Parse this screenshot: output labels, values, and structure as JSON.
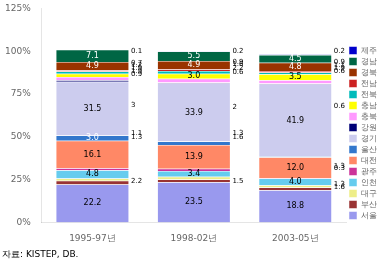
{
  "chart_data": {
    "type": "bar",
    "stacked": true,
    "subtitle": "자료: KISTEP, DB.",
    "categories": [
      "1995-97년",
      "1998-02년",
      "2003-05년"
    ],
    "series": [
      {
        "name": "서울",
        "color": "#9999ee",
        "values": [
          22.2,
          23.5,
          18.8
        ],
        "value_labels": [
          "22.2",
          "23.5",
          "18.8"
        ]
      },
      {
        "name": "부산",
        "color": "#993333",
        "values": [
          2.2,
          1.5,
          1.6
        ],
        "value_labels": [
          null,
          null,
          null
        ]
      },
      {
        "name": "대구",
        "color": "#eeee88",
        "values": [
          1.3,
          1.6,
          1.3
        ],
        "value_labels": [
          null,
          null,
          null
        ]
      },
      {
        "name": "인천",
        "color": "#66ccee",
        "values": [
          4.8,
          3.4,
          4.0
        ],
        "value_labels": [
          "4.8",
          "3.4",
          "4.0"
        ]
      },
      {
        "name": "광주",
        "color": "#cc3399",
        "values": [
          1.1,
          1.3,
          0.3
        ],
        "value_labels": [
          null,
          null,
          null
        ]
      },
      {
        "name": "대전",
        "color": "#ff8866",
        "values": [
          16.1,
          13.9,
          12.0
        ],
        "value_labels": [
          "16.1",
          "13.9",
          "12.0"
        ]
      },
      {
        "name": "울산",
        "color": "#3377cc",
        "values": [
          3.0,
          2.0,
          0.6
        ],
        "value_labels": [
          "3.0",
          null,
          null
        ]
      },
      {
        "name": "경기",
        "color": "#ccccee",
        "values": [
          31.5,
          33.9,
          41.9
        ],
        "value_labels": [
          "31.5",
          "33.9",
          "41.9"
        ]
      },
      {
        "name": "강원",
        "color": "#000077",
        "values": [
          0.9,
          0.6,
          0.6
        ],
        "value_labels": [
          null,
          null,
          null
        ]
      },
      {
        "name": "충북",
        "color": "#ff99ff",
        "values": [
          1.9,
          2.2,
          1.9
        ],
        "value_labels": [
          null,
          null,
          null
        ]
      },
      {
        "name": "충남",
        "color": "#ffff00",
        "values": [
          1.9,
          3.0,
          3.5
        ],
        "value_labels": [
          null,
          "3.0",
          "3.5"
        ]
      },
      {
        "name": "전북",
        "color": "#00bbbb",
        "values": [
          1.2,
          1.6,
          1.1
        ],
        "value_labels": [
          null,
          null,
          null
        ]
      },
      {
        "name": "전남",
        "color": "#cc2222",
        "values": [
          0.7,
          0.9,
          0.9
        ],
        "value_labels": [
          null,
          null,
          null
        ]
      },
      {
        "name": "경북",
        "color": "#993300",
        "values": [
          4.9,
          4.9,
          4.8
        ],
        "value_labels": [
          "4.9",
          "4.9",
          "4.8"
        ]
      },
      {
        "name": "경남",
        "color": "#006644",
        "values": [
          7.1,
          5.5,
          4.5
        ],
        "value_labels": [
          "7.1",
          "5.5",
          "4.5"
        ]
      },
      {
        "name": "제주",
        "color": "#0000cc",
        "values": [
          0.1,
          0.2,
          0.2
        ],
        "value_labels": [
          null,
          null,
          null
        ]
      }
    ],
    "ylim": [
      0,
      125
    ],
    "yticks": [
      {
        "value": 0,
        "label": "0%"
      },
      {
        "value": 25,
        "label": "25%"
      },
      {
        "value": 50,
        "label": "50%"
      },
      {
        "value": 75,
        "label": "75%"
      },
      {
        "value": 100,
        "label": "100%"
      },
      {
        "value": 125,
        "label": "125%"
      }
    ],
    "grid": false,
    "legend": "right",
    "data_labels": true,
    "annotations": [
      {
        "x": "1995-97년",
        "y": 99.95,
        "text": "0.1"
      },
      {
        "x": "1995-97년",
        "y": 93.15,
        "text": "0.7"
      },
      {
        "x": "1995-97년",
        "y": 91.8,
        "text": "1.2"
      },
      {
        "x": "1995-97년",
        "y": 90.3,
        "text": "1.9"
      },
      {
        "x": "1995-97년",
        "y": 88.4,
        "text": "1.9"
      },
      {
        "x": "1995-97년",
        "y": 86.55,
        "text": "0.9"
      },
      {
        "x": "1995-97년",
        "y": 68.25,
        "text": "3"
      },
      {
        "x": "1995-97년",
        "y": 51.9,
        "text": "1.1"
      },
      {
        "x": "1995-97년",
        "y": 49.5,
        "text": "1.3"
      },
      {
        "x": "1995-97년",
        "y": 24.2,
        "text": "2.2"
      },
      {
        "x": "1998-02년",
        "y": 99.9,
        "text": "0.2"
      },
      {
        "x": "1998-02년",
        "y": 93.55,
        "text": "0.9"
      },
      {
        "x": "1998-02년",
        "y": 92.3,
        "text": "1.6"
      },
      {
        "x": "1998-02년",
        "y": 90.1,
        "text": "2.2"
      },
      {
        "x": "1998-02년",
        "y": 87.8,
        "text": "0.6"
      },
      {
        "x": "1998-02년",
        "y": 67.55,
        "text": "2"
      },
      {
        "x": "1998-02년",
        "y": 52.1,
        "text": "1.3"
      },
      {
        "x": "1998-02년",
        "y": 49.8,
        "text": "1.6"
      },
      {
        "x": "1998-02년",
        "y": 24.25,
        "text": "1.5"
      },
      {
        "x": "2003-05년",
        "y": 99.9,
        "text": "0.2"
      },
      {
        "x": "2003-05년",
        "y": 93.55,
        "text": "0.9"
      },
      {
        "x": "2003-05년",
        "y": 92.1,
        "text": "1.1"
      },
      {
        "x": "2003-05년",
        "y": 90.3,
        "text": "1.9"
      },
      {
        "x": "2003-05년",
        "y": 88.1,
        "text": "0.6"
      },
      {
        "x": "2003-05년",
        "y": 68.0,
        "text": "0.6"
      },
      {
        "x": "2003-05년",
        "y": 33.1,
        "text": "1.3"
      },
      {
        "x": "2003-05년",
        "y": 31.65,
        "text": "0.3"
      },
      {
        "x": "2003-05년",
        "y": 22.4,
        "text": "1.3"
      },
      {
        "x": "2003-05년",
        "y": 20.4,
        "text": "1.6"
      }
    ]
  }
}
